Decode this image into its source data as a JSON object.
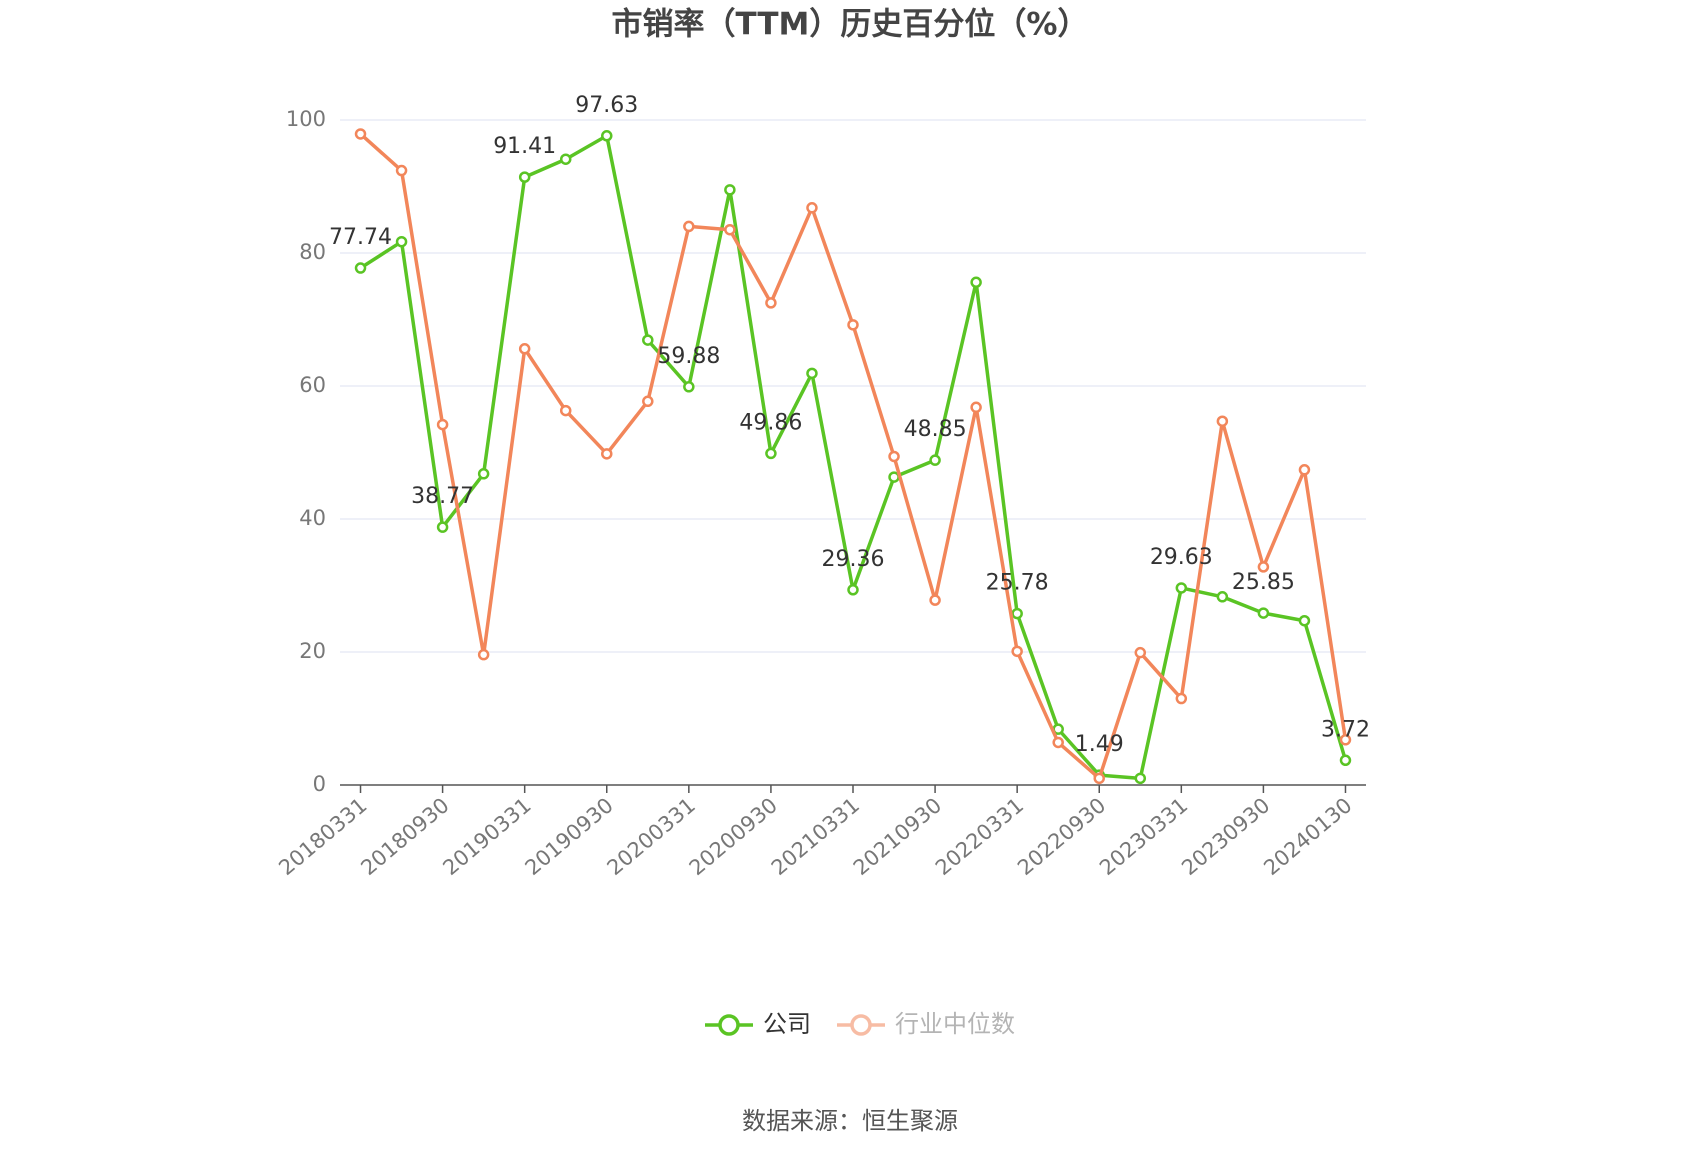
{
  "chart_data": {
    "type": "line",
    "title": "市销率（TTM）历史百分位（%）",
    "categories": [
      "20180331",
      null,
      "20180930",
      null,
      "20190331",
      null,
      "20190930",
      null,
      "20200331",
      null,
      "20200930",
      null,
      "20210331",
      null,
      "20210930",
      null,
      "20220331",
      null,
      "20220930",
      null,
      "20230331",
      null,
      "20230930",
      null,
      "20240130"
    ],
    "series": [
      {
        "name": "公司",
        "color": "#5ac424",
        "values": [
          77.74,
          81.7,
          38.77,
          46.8,
          91.41,
          94.1,
          97.63,
          66.9,
          59.88,
          89.5,
          49.86,
          61.9,
          29.36,
          46.3,
          48.85,
          75.6,
          25.78,
          8.4,
          1.49,
          1.0,
          29.63,
          28.3,
          25.85,
          24.7,
          3.72
        ],
        "value_labels": [
          "77.74",
          null,
          "38.77",
          null,
          "91.41",
          null,
          "97.63",
          null,
          "59.88",
          null,
          "49.86",
          null,
          "29.36",
          null,
          "48.85",
          null,
          "25.78",
          null,
          "1.49",
          null,
          "29.63",
          null,
          "25.85",
          null,
          "3.72"
        ]
      },
      {
        "name": "行业中位数",
        "color": "#f2865a",
        "values": [
          97.9,
          92.4,
          54.2,
          19.6,
          65.6,
          56.3,
          49.8,
          57.7,
          84.0,
          83.5,
          72.5,
          86.8,
          69.2,
          49.4,
          27.8,
          56.8,
          20.1,
          6.4,
          1.0,
          19.9,
          13.0,
          54.7,
          32.8,
          47.4,
          6.8
        ]
      }
    ],
    "ylim": [
      0,
      100
    ],
    "yticks": [
      0,
      20,
      40,
      60,
      80,
      100
    ],
    "grid": true,
    "legend": "bottom",
    "source": "数据来源：恒生聚源"
  }
}
